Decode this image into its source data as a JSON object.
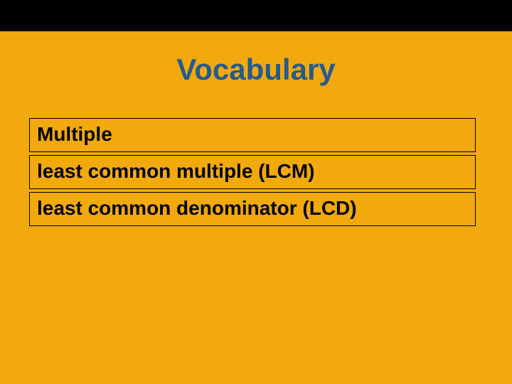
{
  "background_color": "#f2a90e",
  "top_bar_color": "#000000",
  "title": {
    "text": "Vocabulary",
    "color": "#255a8f",
    "fontsize": 42
  },
  "box_border_color": "#000000",
  "term_color": "#000000",
  "term_fontsize": 28,
  "terms": [
    "Multiple",
    "least common multiple (LCM)",
    "least common denominator (LCD)"
  ]
}
